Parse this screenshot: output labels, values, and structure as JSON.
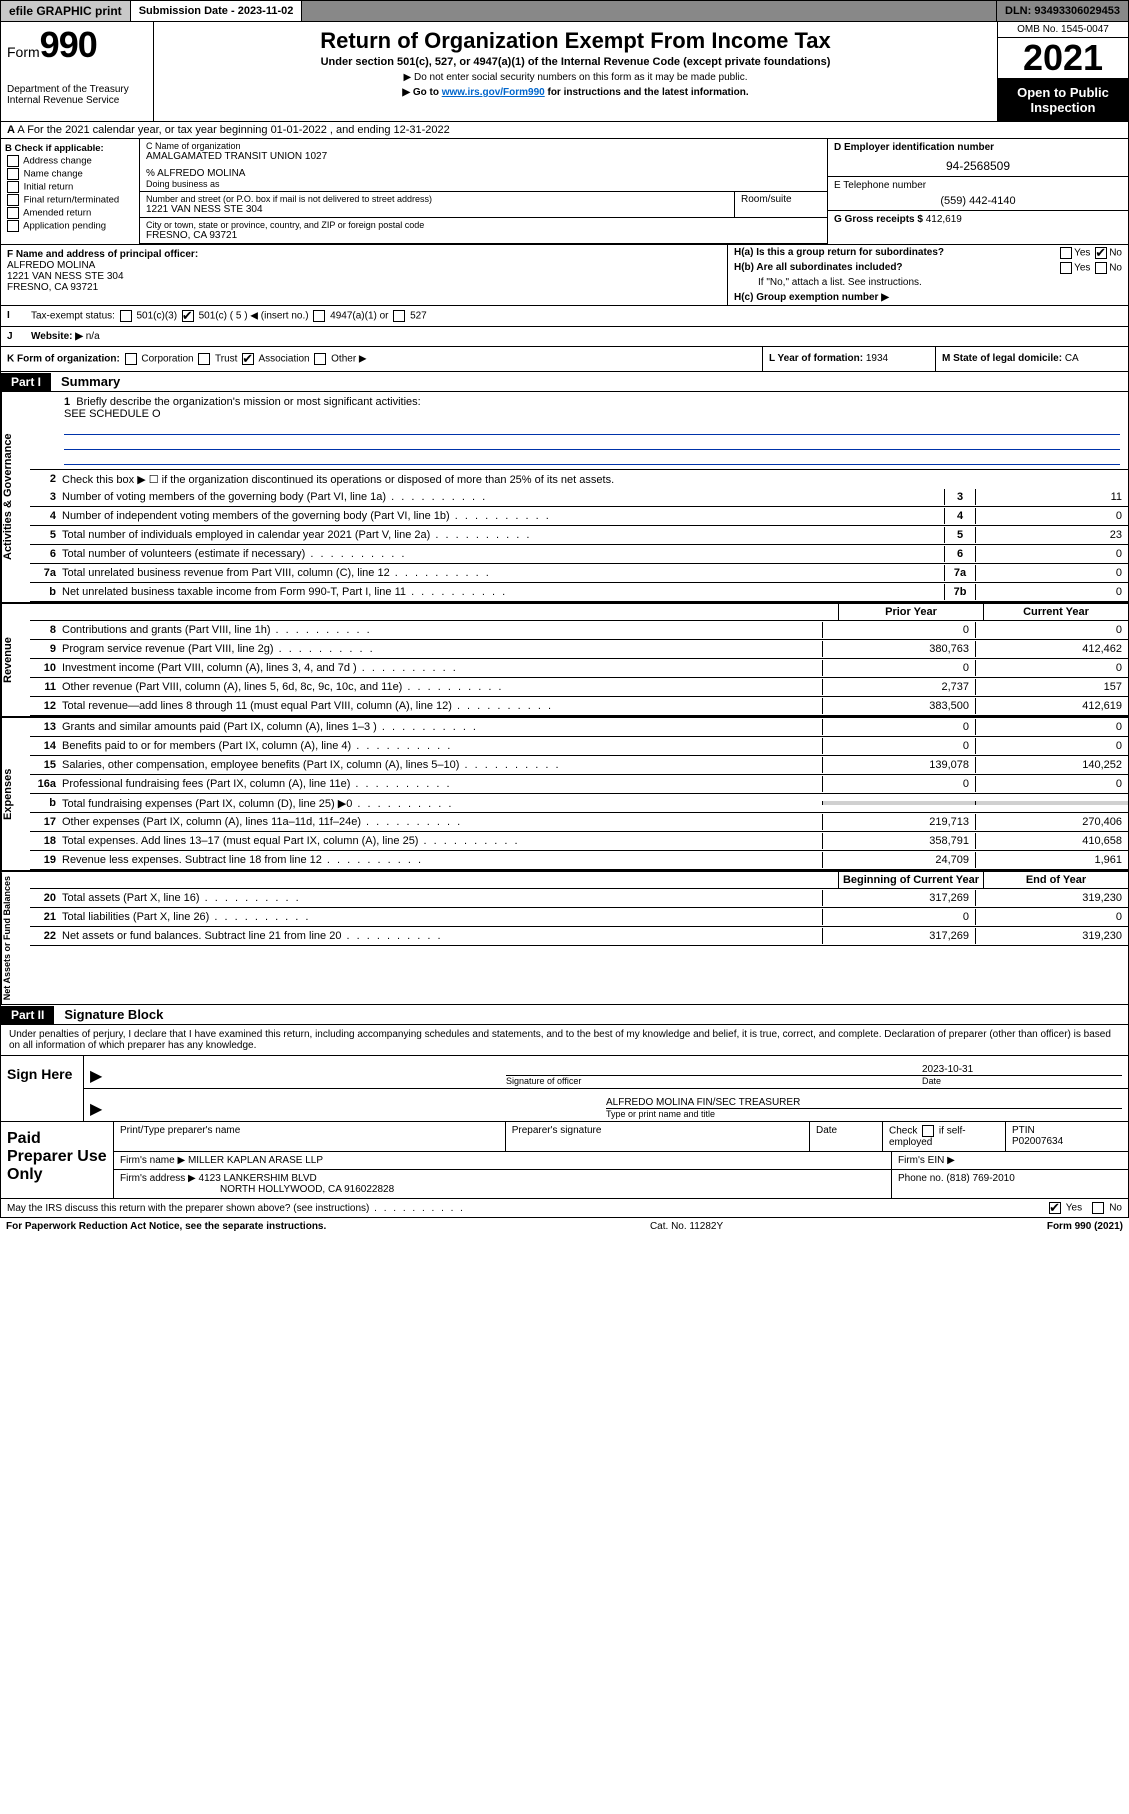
{
  "topbar": {
    "efile": "efile GRAPHIC print",
    "submission_label": "Submission Date - 2023-11-02",
    "dln": "DLN: 93493306029453"
  },
  "header": {
    "form_word": "Form",
    "form_num": "990",
    "dept": "Department of the Treasury",
    "irs": "Internal Revenue Service",
    "title": "Return of Organization Exempt From Income Tax",
    "sub1": "Under section 501(c), 527, or 4947(a)(1) of the Internal Revenue Code (except private foundations)",
    "sub2": "▶ Do not enter social security numbers on this form as it may be made public.",
    "sub3_pre": "▶ Go to ",
    "sub3_link": "www.irs.gov/Form990",
    "sub3_post": " for instructions and the latest information.",
    "omb": "OMB No. 1545-0047",
    "year": "2021",
    "inspect": "Open to Public Inspection"
  },
  "rowA": "A For the 2021 calendar year, or tax year beginning 01-01-2022    , and ending 12-31-2022",
  "colB": {
    "label": "B Check if applicable:",
    "opts": [
      "Address change",
      "Name change",
      "Initial return",
      "Final return/terminated",
      "Amended return",
      "Application pending"
    ]
  },
  "colC": {
    "label_name": "C Name of organization",
    "org": "AMALGAMATED TRANSIT UNION 1027",
    "care_of": "% ALFREDO MOLINA",
    "dba_label": "Doing business as",
    "street_label": "Number and street (or P.O. box if mail is not delivered to street address)",
    "room_label": "Room/suite",
    "street": "1221 VAN NESS STE 304",
    "city_label": "City or town, state or province, country, and ZIP or foreign postal code",
    "city": "FRESNO, CA  93721"
  },
  "colDE": {
    "d_label": "D Employer identification number",
    "ein": "94-2568509",
    "e_label": "E Telephone number",
    "phone": "(559) 442-4140",
    "g_label": "G Gross receipts $",
    "gross": "412,619"
  },
  "colF": {
    "label": "F  Name and address of principal officer:",
    "name": "ALFREDO MOLINA",
    "addr1": "1221 VAN NESS STE 304",
    "addr2": "FRESNO, CA  93721"
  },
  "colH": {
    "ha": "H(a)  Is this a group return for subordinates?",
    "hb": "H(b)  Are all subordinates included?",
    "hb_note": "If \"No,\" attach a list. See instructions.",
    "hc": "H(c)  Group exemption number ▶",
    "yes": "Yes",
    "no": "No"
  },
  "rowI": {
    "label": "Tax-exempt status:",
    "o1": "501(c)(3)",
    "o2": "501(c) ( 5 ) ◀ (insert no.)",
    "o3": "4947(a)(1) or",
    "o4": "527"
  },
  "rowJ": {
    "label": "Website: ▶",
    "val": "n/a"
  },
  "rowK": {
    "label": "K Form of organization:",
    "opts": [
      "Corporation",
      "Trust",
      "Association",
      "Other ▶"
    ],
    "l_label": "L Year of formation:",
    "l_val": "1934",
    "m_label": "M State of legal domicile:",
    "m_val": "CA"
  },
  "part1": {
    "header": "Part I",
    "title": "Summary"
  },
  "summary": {
    "q1": "Briefly describe the organization's mission or most significant activities:",
    "q1_val": "SEE SCHEDULE O",
    "q2": "Check this box ▶ ☐  if the organization discontinued its operations or disposed of more than 25% of its net assets.",
    "lines_top": [
      {
        "n": "3",
        "d": "Number of voting members of the governing body (Part VI, line 1a)",
        "box": "3",
        "v": "11"
      },
      {
        "n": "4",
        "d": "Number of independent voting members of the governing body (Part VI, line 1b)",
        "box": "4",
        "v": "0"
      },
      {
        "n": "5",
        "d": "Total number of individuals employed in calendar year 2021 (Part V, line 2a)",
        "box": "5",
        "v": "23"
      },
      {
        "n": "6",
        "d": "Total number of volunteers (estimate if necessary)",
        "box": "6",
        "v": "0"
      },
      {
        "n": "7a",
        "d": "Total unrelated business revenue from Part VIII, column (C), line 12",
        "box": "7a",
        "v": "0"
      },
      {
        "n": "b",
        "d": "Net unrelated business taxable income from Form 990-T, Part I, line 11",
        "box": "7b",
        "v": "0"
      }
    ],
    "col_prior": "Prior Year",
    "col_current": "Current Year",
    "revenue": [
      {
        "n": "8",
        "d": "Contributions and grants (Part VIII, line 1h)",
        "p": "0",
        "c": "0"
      },
      {
        "n": "9",
        "d": "Program service revenue (Part VIII, line 2g)",
        "p": "380,763",
        "c": "412,462"
      },
      {
        "n": "10",
        "d": "Investment income (Part VIII, column (A), lines 3, 4, and 7d )",
        "p": "0",
        "c": "0"
      },
      {
        "n": "11",
        "d": "Other revenue (Part VIII, column (A), lines 5, 6d, 8c, 9c, 10c, and 11e)",
        "p": "2,737",
        "c": "157"
      },
      {
        "n": "12",
        "d": "Total revenue—add lines 8 through 11 (must equal Part VIII, column (A), line 12)",
        "p": "383,500",
        "c": "412,619"
      }
    ],
    "expenses": [
      {
        "n": "13",
        "d": "Grants and similar amounts paid (Part IX, column (A), lines 1–3 )",
        "p": "0",
        "c": "0"
      },
      {
        "n": "14",
        "d": "Benefits paid to or for members (Part IX, column (A), line 4)",
        "p": "0",
        "c": "0"
      },
      {
        "n": "15",
        "d": "Salaries, other compensation, employee benefits (Part IX, column (A), lines 5–10)",
        "p": "139,078",
        "c": "140,252"
      },
      {
        "n": "16a",
        "d": "Professional fundraising fees (Part IX, column (A), line 11e)",
        "p": "0",
        "c": "0"
      },
      {
        "n": "b",
        "d": "Total fundraising expenses (Part IX, column (D), line 25) ▶0",
        "p": "",
        "c": "",
        "shade": true
      },
      {
        "n": "17",
        "d": "Other expenses (Part IX, column (A), lines 11a–11d, 11f–24e)",
        "p": "219,713",
        "c": "270,406"
      },
      {
        "n": "18",
        "d": "Total expenses. Add lines 13–17 (must equal Part IX, column (A), line 25)",
        "p": "358,791",
        "c": "410,658"
      },
      {
        "n": "19",
        "d": "Revenue less expenses. Subtract line 18 from line 12",
        "p": "24,709",
        "c": "1,961"
      }
    ],
    "col_begin": "Beginning of Current Year",
    "col_end": "End of Year",
    "netassets": [
      {
        "n": "20",
        "d": "Total assets (Part X, line 16)",
        "p": "317,269",
        "c": "319,230"
      },
      {
        "n": "21",
        "d": "Total liabilities (Part X, line 26)",
        "p": "0",
        "c": "0"
      },
      {
        "n": "22",
        "d": "Net assets or fund balances. Subtract line 21 from line 20",
        "p": "317,269",
        "c": "319,230"
      }
    ],
    "vtab1": "Activities & Governance",
    "vtab2": "Revenue",
    "vtab3": "Expenses",
    "vtab4": "Net Assets or Fund Balances"
  },
  "part2": {
    "header": "Part II",
    "title": "Signature Block"
  },
  "sig": {
    "decl": "Under penalties of perjury, I declare that I have examined this return, including accompanying schedules and statements, and to the best of my knowledge and belief, it is true, correct, and complete. Declaration of preparer (other than officer) is based on all information of which preparer has any knowledge.",
    "sign_here": "Sign Here",
    "sig_label": "Signature of officer",
    "date_label": "Date",
    "date": "2023-10-31",
    "name_label": "Type or print name and title",
    "name": "ALFREDO MOLINA  FIN/SEC TREASURER"
  },
  "prep": {
    "label": "Paid Preparer Use Only",
    "h1": "Print/Type preparer's name",
    "h2": "Preparer's signature",
    "h3": "Date",
    "h4_pre": "Check",
    "h4_post": "if self-employed",
    "h5": "PTIN",
    "ptin": "P02007634",
    "firm_label": "Firm's name    ▶",
    "firm": "MILLER KAPLAN ARASE LLP",
    "ein_label": "Firm's EIN ▶",
    "addr_label": "Firm's address ▶",
    "addr1": "4123 LANKERSHIM BLVD",
    "addr2": "NORTH HOLLYWOOD, CA  916022828",
    "phone_label": "Phone no.",
    "phone": "(818) 769-2010"
  },
  "footer": {
    "discuss": "May the IRS discuss this return with the preparer shown above? (see instructions)",
    "yes": "Yes",
    "no": "No",
    "pra": "For Paperwork Reduction Act Notice, see the separate instructions.",
    "cat": "Cat. No. 11282Y",
    "form": "Form 990 (2021)"
  }
}
